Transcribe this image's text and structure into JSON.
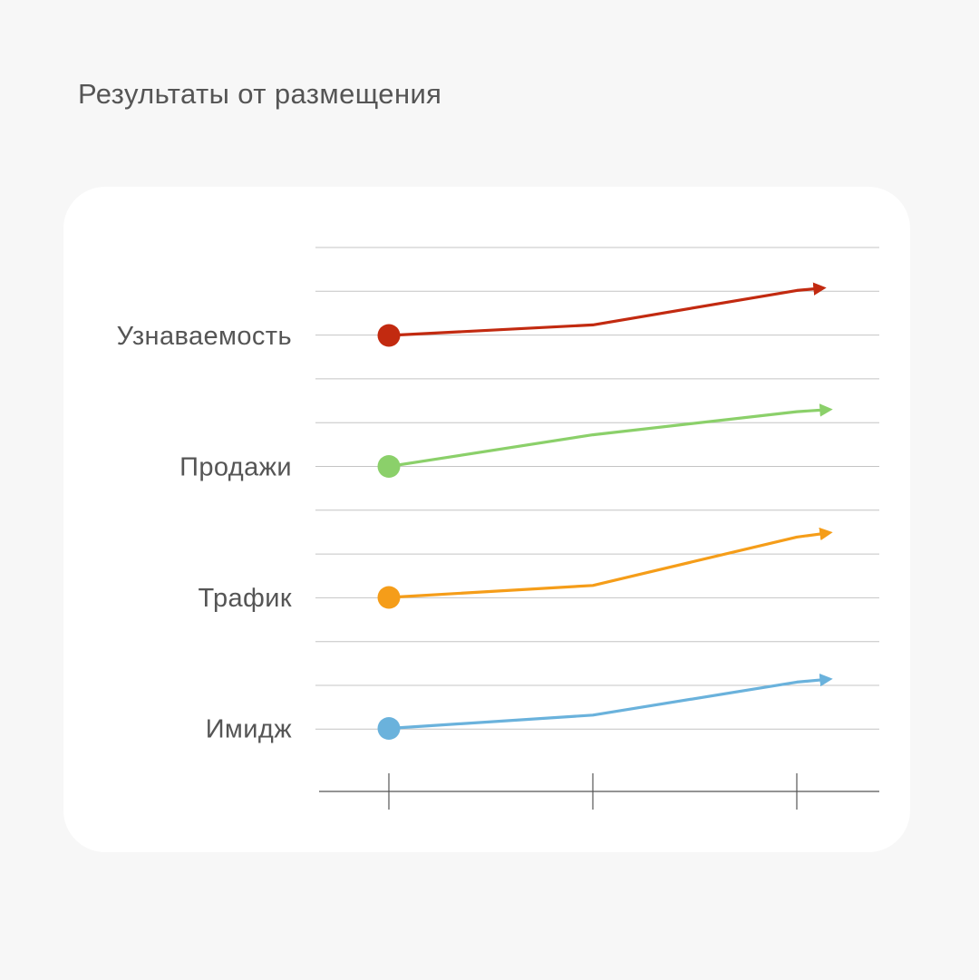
{
  "title": "Результаты от размещения",
  "chart_data": {
    "type": "line",
    "title": "Результаты от размещения",
    "xlabel": "",
    "ylabel": "",
    "x_ticks": [
      "",
      "",
      ""
    ],
    "grid": true,
    "legend": "none",
    "series": [
      {
        "name": "Узнаваемость",
        "color": "#c22a10",
        "values": [
          0,
          0.75,
          3.2
        ],
        "arrow": true
      },
      {
        "name": "Продажи",
        "color": "#8bd06a",
        "values": [
          0,
          2.25,
          3.9
        ],
        "arrow": true
      },
      {
        "name": "Трафик",
        "color": "#f59d19",
        "values": [
          0,
          0.85,
          4.3
        ],
        "arrow": true
      },
      {
        "name": "Имидж",
        "color": "#6ab2dc",
        "values": [
          0,
          0.95,
          3.3
        ],
        "arrow": true
      }
    ]
  }
}
